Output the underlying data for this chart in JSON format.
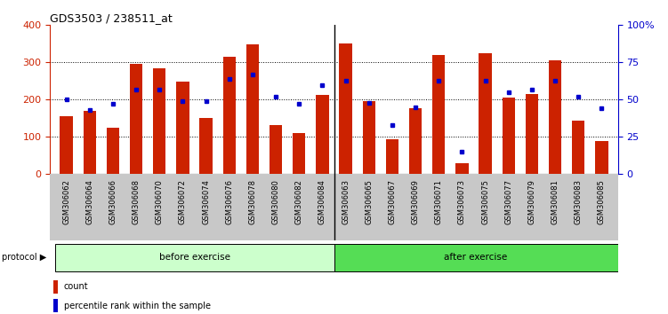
{
  "title": "GDS3503 / 238511_at",
  "samples": [
    "GSM306062",
    "GSM306064",
    "GSM306066",
    "GSM306068",
    "GSM306070",
    "GSM306072",
    "GSM306074",
    "GSM306076",
    "GSM306078",
    "GSM306080",
    "GSM306082",
    "GSM306084",
    "GSM306063",
    "GSM306065",
    "GSM306067",
    "GSM306069",
    "GSM306071",
    "GSM306073",
    "GSM306075",
    "GSM306077",
    "GSM306079",
    "GSM306081",
    "GSM306083",
    "GSM306085"
  ],
  "counts": [
    155,
    170,
    125,
    297,
    285,
    248,
    150,
    315,
    348,
    132,
    110,
    212,
    350,
    197,
    93,
    178,
    320,
    30,
    325,
    205,
    215,
    305,
    143,
    88
  ],
  "percentiles": [
    50,
    43,
    47,
    57,
    57,
    49,
    49,
    64,
    67,
    52,
    47,
    60,
    63,
    48,
    33,
    45,
    63,
    15,
    63,
    55,
    57,
    63,
    52,
    44
  ],
  "before_exercise_count": 12,
  "bar_color": "#cc2200",
  "dot_color": "#0000cc",
  "yticks_left": [
    0,
    100,
    200,
    300,
    400
  ],
  "yticks_right": [
    0,
    25,
    50,
    75,
    100
  ],
  "grid_values": [
    100,
    200,
    300
  ],
  "before_color": "#ccffcc",
  "after_color": "#55dd55",
  "protocol_label": "protocol",
  "before_label": "before exercise",
  "after_label": "after exercise",
  "legend_count_label": "count",
  "legend_percentile_label": "percentile rank within the sample",
  "title_fontsize": 9,
  "tick_fontsize": 6,
  "bar_width": 0.55,
  "tick_area_color": "#c8c8c8"
}
